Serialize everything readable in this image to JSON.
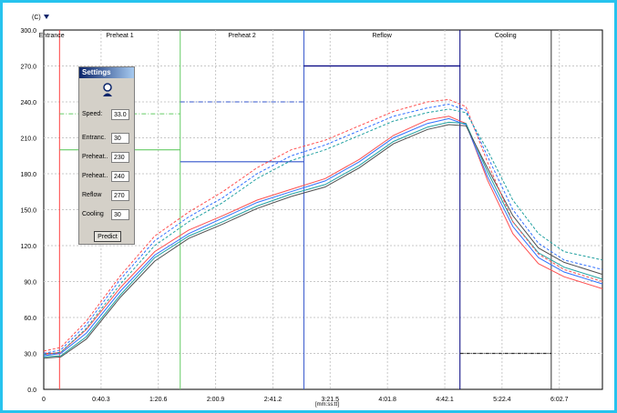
{
  "chart_data": {
    "type": "line",
    "y_unit": "(C)",
    "x_unit": "[mm:ss:tt]",
    "xlim": [
      0,
      6.55
    ],
    "ylim": [
      0,
      300
    ],
    "y_ticks": [
      0,
      30,
      60,
      90,
      120,
      150,
      180,
      210,
      240,
      270,
      300
    ],
    "y_tick_labels": [
      "0.0",
      "30.0",
      "60.0",
      "90.0",
      "120.0",
      "150.0",
      "180.0",
      "210.0",
      "240.0",
      "270.0",
      "300.0"
    ],
    "x_ticks": [
      0,
      0.672,
      1.343,
      2.015,
      2.687,
      3.358,
      4.03,
      4.702,
      5.373,
      6.045
    ],
    "x_tick_labels": [
      "0",
      "0:40.3",
      "1:20.6",
      "2:00.9",
      "2:41.2",
      "3:21.5",
      "4:01.8",
      "4:42.1",
      "5:22.4",
      "6:02.7"
    ],
    "grid": true,
    "zones": [
      {
        "label": "Entrance",
        "start": 0,
        "end": 0.185,
        "color": "#ff4040",
        "setpoint": 30
      },
      {
        "label": "Preheat 1",
        "start": 0.185,
        "end": 1.6,
        "color": "#66cc66",
        "setpoint": 200
      },
      {
        "label": "Preheat 2",
        "start": 1.6,
        "end": 3.05,
        "color": "#3355cc",
        "setpoint": 190
      },
      {
        "label": "Reflow",
        "start": 3.05,
        "end": 4.88,
        "color": "#000080",
        "setpoint": 270
      },
      {
        "label": "Cooling",
        "start": 4.88,
        "end": 5.95,
        "color": "#333333",
        "setpoint": 30
      }
    ],
    "extra_setpoints": [
      {
        "y": 230,
        "start": 0.185,
        "end": 1.6,
        "color": "#66cc66",
        "dash": "5,2,1,2"
      },
      {
        "y": 240,
        "start": 1.6,
        "end": 3.05,
        "color": "#3355cc",
        "dash": "5,2,1,2"
      }
    ],
    "series": [
      {
        "color": "#ff5050",
        "dash": "",
        "x": [
          0,
          0.2,
          0.5,
          0.9,
          1.3,
          1.7,
          2.1,
          2.5,
          2.9,
          3.3,
          3.7,
          4.1,
          4.5,
          4.75,
          4.95,
          5.2,
          5.5,
          5.8,
          6.1,
          6.55
        ],
        "y": [
          29,
          31,
          50,
          85,
          115,
          133,
          145,
          158,
          167,
          176,
          192,
          212,
          225,
          228,
          222,
          175,
          130,
          105,
          94,
          84
        ]
      },
      {
        "color": "#3070ff",
        "dash": "",
        "x": [
          0,
          0.2,
          0.5,
          0.9,
          1.3,
          1.7,
          2.1,
          2.5,
          2.9,
          3.3,
          3.7,
          4.1,
          4.5,
          4.75,
          4.95,
          5.2,
          5.5,
          5.8,
          6.1,
          6.55
        ],
        "y": [
          28,
          30,
          47,
          82,
          112,
          130,
          143,
          156,
          165,
          174,
          190,
          210,
          222,
          226,
          221,
          178,
          136,
          110,
          98,
          88
        ]
      },
      {
        "color": "#20a0a0",
        "dash": "",
        "x": [
          0,
          0.2,
          0.5,
          0.9,
          1.3,
          1.7,
          2.1,
          2.5,
          2.9,
          3.3,
          3.7,
          4.1,
          4.5,
          4.75,
          4.95,
          5.2,
          5.5,
          5.8,
          6.1,
          6.55
        ],
        "y": [
          27,
          28,
          44,
          79,
          110,
          128,
          140,
          153,
          163,
          171,
          187,
          207,
          219,
          223,
          222,
          182,
          140,
          114,
          102,
          92
        ]
      },
      {
        "color": "#505050",
        "dash": "",
        "x": [
          0,
          0.2,
          0.5,
          0.9,
          1.3,
          1.7,
          2.1,
          2.5,
          2.9,
          3.3,
          3.7,
          4.1,
          4.5,
          4.75,
          4.95,
          5.2,
          5.5,
          5.8,
          6.1,
          6.55
        ],
        "y": [
          26,
          27,
          42,
          77,
          107,
          126,
          138,
          151,
          161,
          169,
          185,
          205,
          217,
          221,
          220,
          185,
          145,
          118,
          106,
          96
        ]
      },
      {
        "color": "#ff5050",
        "dash": "3,2",
        "x": [
          0,
          0.2,
          0.5,
          0.9,
          1.3,
          1.7,
          2.1,
          2.5,
          2.9,
          3.3,
          3.7,
          4.1,
          4.5,
          4.75,
          4.95,
          5.2,
          5.5,
          5.8,
          6.1,
          6.55
        ],
        "y": [
          32,
          35,
          57,
          95,
          128,
          148,
          165,
          185,
          200,
          208,
          220,
          232,
          240,
          242,
          236,
          190,
          140,
          113,
          100,
          90
        ]
      },
      {
        "color": "#3070ff",
        "dash": "3,2",
        "x": [
          0,
          0.2,
          0.5,
          0.9,
          1.3,
          1.7,
          2.1,
          2.5,
          2.9,
          3.3,
          3.7,
          4.1,
          4.5,
          4.75,
          4.95,
          5.2,
          5.5,
          5.8,
          6.1,
          6.55
        ],
        "y": [
          30,
          33,
          54,
          92,
          124,
          144,
          160,
          180,
          195,
          204,
          216,
          228,
          235,
          238,
          233,
          195,
          150,
          122,
          108,
          100
        ]
      },
      {
        "color": "#20a0a0",
        "dash": "3,2",
        "x": [
          0,
          0.2,
          0.5,
          0.9,
          1.3,
          1.7,
          2.1,
          2.5,
          2.9,
          3.3,
          3.7,
          4.1,
          4.5,
          4.75,
          4.95,
          5.2,
          5.5,
          5.8,
          6.1,
          6.55
        ],
        "y": [
          29,
          31,
          51,
          88,
          120,
          140,
          156,
          176,
          191,
          200,
          212,
          224,
          231,
          234,
          231,
          200,
          158,
          130,
          115,
          108
        ]
      }
    ]
  },
  "settings": {
    "title": "Settings",
    "speed_label": "Speed:",
    "speed_value": "33.0",
    "entrance_label": "Entranc.",
    "entrance_value": "30",
    "preheat1_label": "Preheat..",
    "preheat1_value": "230",
    "preheat2_label": "Preheat..",
    "preheat2_value": "240",
    "reflow_label": "Reflow",
    "reflow_value": "270",
    "cooling_label": "Cooling",
    "cooling_value": "30",
    "predict_label": "Predict"
  }
}
